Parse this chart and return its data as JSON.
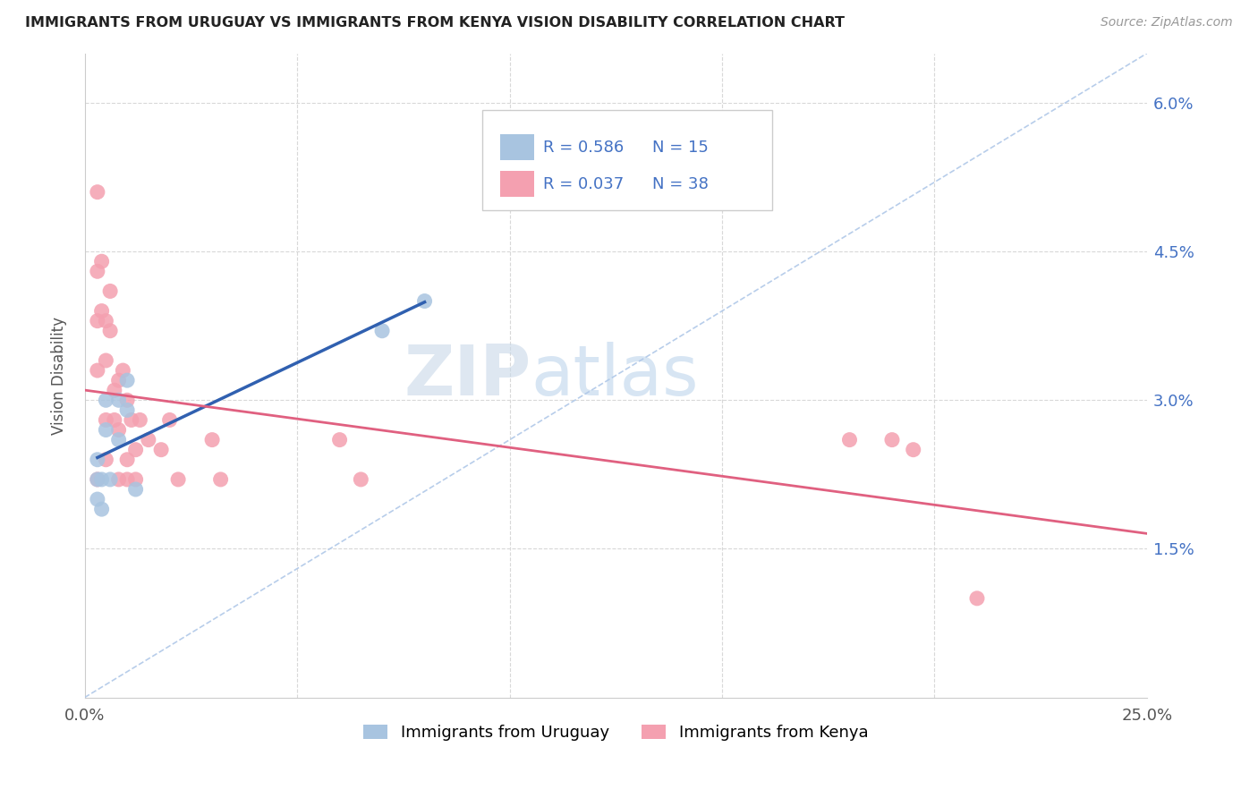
{
  "title": "IMMIGRANTS FROM URUGUAY VS IMMIGRANTS FROM KENYA VISION DISABILITY CORRELATION CHART",
  "source": "Source: ZipAtlas.com",
  "ylabel": "Vision Disability",
  "xlim": [
    0.0,
    0.25
  ],
  "ylim": [
    0.0,
    0.065
  ],
  "xticks": [
    0.0,
    0.05,
    0.1,
    0.15,
    0.2,
    0.25
  ],
  "yticks": [
    0.0,
    0.015,
    0.03,
    0.045,
    0.06
  ],
  "xticklabels": [
    "0.0%",
    "",
    "",
    "",
    "",
    "25.0%"
  ],
  "yticklabels": [
    "",
    "1.5%",
    "3.0%",
    "4.5%",
    "6.0%"
  ],
  "legend_labels": [
    "Immigrants from Uruguay",
    "Immigrants from Kenya"
  ],
  "R_uruguay": 0.586,
  "N_uruguay": 15,
  "R_kenya": 0.037,
  "N_kenya": 38,
  "uruguay_color": "#a8c4e0",
  "kenya_color": "#f4a0b0",
  "uruguay_line_color": "#3060b0",
  "kenya_line_color": "#e06080",
  "diagonal_color": "#b0c8e8",
  "uruguay_points_x": [
    0.003,
    0.003,
    0.003,
    0.004,
    0.004,
    0.005,
    0.005,
    0.006,
    0.008,
    0.008,
    0.01,
    0.01,
    0.012,
    0.07,
    0.08
  ],
  "uruguay_points_y": [
    0.024,
    0.022,
    0.02,
    0.022,
    0.019,
    0.03,
    0.027,
    0.022,
    0.03,
    0.026,
    0.032,
    0.029,
    0.021,
    0.037,
    0.04
  ],
  "kenya_points_x": [
    0.003,
    0.003,
    0.003,
    0.003,
    0.003,
    0.004,
    0.004,
    0.005,
    0.005,
    0.005,
    0.005,
    0.006,
    0.006,
    0.007,
    0.007,
    0.008,
    0.008,
    0.008,
    0.009,
    0.01,
    0.01,
    0.01,
    0.011,
    0.012,
    0.012,
    0.013,
    0.015,
    0.018,
    0.02,
    0.022,
    0.03,
    0.032,
    0.06,
    0.065,
    0.18,
    0.19,
    0.195,
    0.21
  ],
  "kenya_points_y": [
    0.051,
    0.043,
    0.038,
    0.033,
    0.022,
    0.044,
    0.039,
    0.038,
    0.034,
    0.028,
    0.024,
    0.041,
    0.037,
    0.031,
    0.028,
    0.032,
    0.027,
    0.022,
    0.033,
    0.03,
    0.024,
    0.022,
    0.028,
    0.025,
    0.022,
    0.028,
    0.026,
    0.025,
    0.028,
    0.022,
    0.026,
    0.022,
    0.026,
    0.022,
    0.026,
    0.026,
    0.025,
    0.01
  ],
  "background_color": "#ffffff",
  "grid_color": "#d8d8d8"
}
